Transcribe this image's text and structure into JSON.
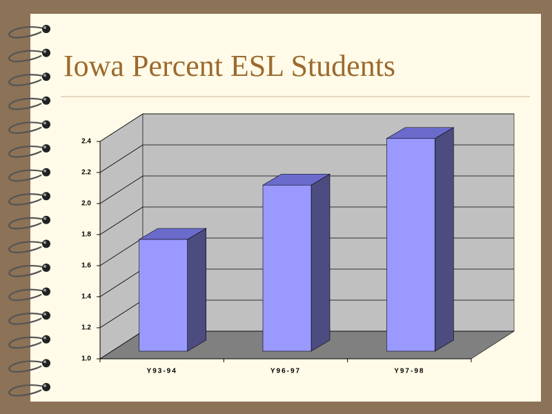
{
  "chart_data": {
    "type": "bar3d",
    "title": "Iowa Percent ESL Students",
    "categories": [
      "Y93-94",
      "Y96-97",
      "Y97-98"
    ],
    "values": [
      1.72,
      2.07,
      2.37
    ],
    "color": "#9999ff",
    "ylim": [
      1.0,
      2.4
    ],
    "yticks": [
      {
        "value": 1.0,
        "label": "1.0"
      },
      1.2,
      1.4,
      1.6,
      1.8,
      {
        "value": 2.0,
        "label": "2.0"
      },
      2.2,
      2.4
    ],
    "grid": true
  }
}
